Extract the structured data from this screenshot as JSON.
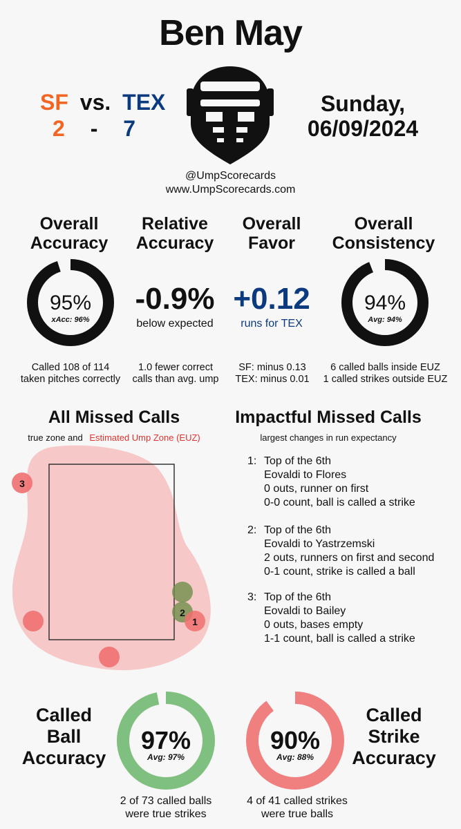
{
  "header": {
    "umpire_name": "Ben May",
    "away_team": "SF",
    "vs_label": "vs.",
    "home_team": "TEX",
    "away_score": "2",
    "score_dash": "-",
    "home_score": "7",
    "day": "Sunday,",
    "date": "06/09/2024",
    "handle": "@UmpScorecards",
    "website": "www.UmpScorecards.com"
  },
  "colors": {
    "sf": "#f26522",
    "tex": "#0b3a7e",
    "green": "#7fbf7f",
    "red": "#f08080",
    "euz": "#f7c8c8"
  },
  "metrics": {
    "overall_accuracy": {
      "title_1": "Overall",
      "title_2": "Accuracy",
      "value": "95%",
      "sub": "xAcc: 96%",
      "percent": 95,
      "detail_1": "Called 108 of 114",
      "detail_2": "taken pitches correctly"
    },
    "relative_accuracy": {
      "title_1": "Relative",
      "title_2": "Accuracy",
      "value": "-0.9%",
      "sub": "below expected",
      "detail_1": "1.0 fewer correct",
      "detail_2": "calls than avg. ump"
    },
    "overall_favor": {
      "title_1": "Overall",
      "title_2": "Favor",
      "value": "+0.12",
      "sub": "runs for TEX",
      "detail_1": "SF: minus 0.13",
      "detail_2": "TEX: minus 0.01"
    },
    "overall_consistency": {
      "title_1": "Overall",
      "title_2": "Consistency",
      "value": "94%",
      "sub": "Avg: 94%",
      "percent": 94,
      "detail_1": "6 called balls inside EUZ",
      "detail_2": "1 called strikes outside EUZ"
    }
  },
  "missed_calls": {
    "title": "All Missed Calls",
    "sub_1": "true zone and",
    "sub_2": "Estimated Ump Zone (EUZ)",
    "labels": [
      "1",
      "2",
      "3"
    ]
  },
  "impactful": {
    "title": "Impactful Missed Calls",
    "sub": "largest changes in run expectancy",
    "items": [
      {
        "num": "1:",
        "line1": "Top of the 6th",
        "line2": "Eovaldi to Flores",
        "line3": "0 outs, runner on first",
        "line4": "0-0 count, ball is called a strike"
      },
      {
        "num": "2:",
        "line1": "Top of the 6th",
        "line2": "Eovaldi to Yastrzemski",
        "line3": "2 outs, runners on first and second",
        "line4": "0-1 count, strike is called a ball"
      },
      {
        "num": "3:",
        "line1": "Top of the 6th",
        "line2": "Eovaldi to Bailey",
        "line3": "0 outs, bases empty",
        "line4": "1-1 count, ball is called a strike"
      }
    ]
  },
  "called_ball": {
    "label_1": "Called",
    "label_2": "Ball",
    "label_3": "Accuracy",
    "value": "97%",
    "avg": "Avg: 97%",
    "percent": 97,
    "detail_1": "2 of 73 called balls",
    "detail_2": "were true strikes"
  },
  "called_strike": {
    "label_1": "Called",
    "label_2": "Strike",
    "label_3": "Accuracy",
    "value": "90%",
    "avg": "Avg: 88%",
    "percent": 90,
    "detail_1": "4 of 41 called strikes",
    "detail_2": "were true balls"
  }
}
